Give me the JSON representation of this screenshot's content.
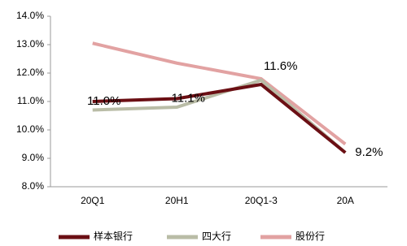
{
  "chart_data": {
    "type": "line",
    "categories": [
      "20Q1",
      "20H1",
      "20Q1-3",
      "20A"
    ],
    "series": [
      {
        "name": "样本银行",
        "color": "#6b0f14",
        "values": [
          11.0,
          11.1,
          11.6,
          9.2
        ],
        "value_labels": [
          "11.0%",
          "11.1%",
          "11.6%",
          "9.2%"
        ]
      },
      {
        "name": "四大行",
        "color": "#b9bca6",
        "values": [
          10.7,
          10.8,
          11.75,
          9.2
        ]
      },
      {
        "name": "股份行",
        "color": "#e2a2a2",
        "values": [
          13.05,
          12.35,
          11.8,
          9.5
        ]
      }
    ],
    "ylim": [
      8,
      14
    ],
    "yticks": [
      {
        "value": 8,
        "label": "8.0%"
      },
      {
        "value": 9,
        "label": "9.0%"
      },
      {
        "value": 10,
        "label": "10.0%"
      },
      {
        "value": 11,
        "label": "11.0%"
      },
      {
        "value": 12,
        "label": "12.0%"
      },
      {
        "value": 13,
        "label": "13.0%"
      },
      {
        "value": 14,
        "label": "14.0%"
      }
    ],
    "grid": false,
    "legend": "bottom"
  }
}
